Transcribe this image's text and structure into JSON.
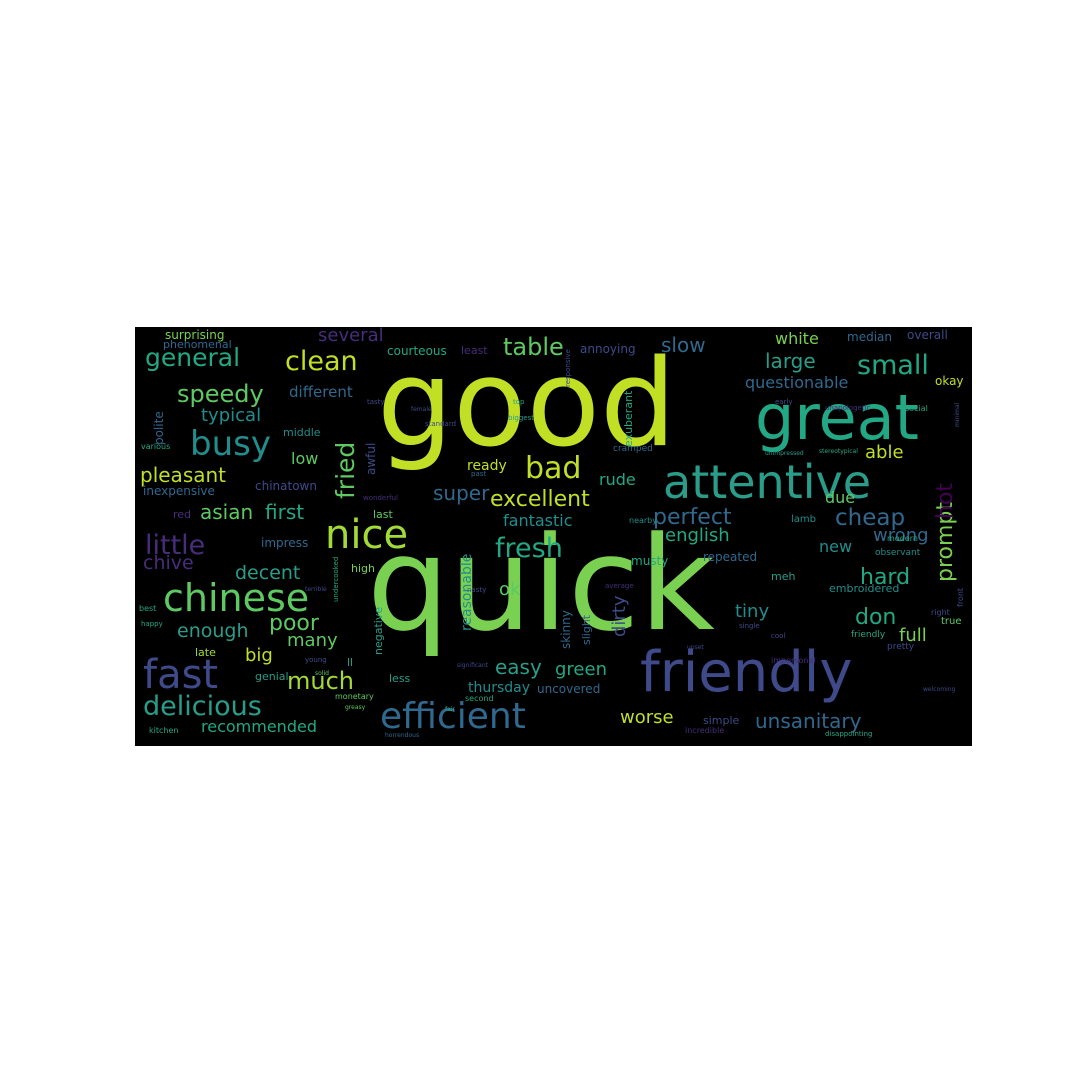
{
  "palette": {
    "background": "#000000",
    "page": "#ffffff",
    "yellow": "#c0df25",
    "lime": "#a2da37",
    "green": "#7ad151",
    "mint": "#5ec962",
    "teal": "#22a884",
    "sea": "#2a9d8a",
    "cyan": "#218e8d",
    "blue": "#31688e",
    "indigo": "#3e4a89",
    "violet": "#472d7b",
    "purple": "#440154"
  },
  "words": {
    "good": "good",
    "quick": "quick",
    "great": "great",
    "friendly": "friendly",
    "attentive": "attentive",
    "nice": "nice",
    "chinese": "chinese",
    "fast": "fast",
    "efficient": "efficient",
    "busy": "busy",
    "bad": "bad",
    "delicious": "delicious",
    "little": "little",
    "fresh": "fresh",
    "small": "small",
    "general": "general",
    "clean": "clean",
    "table": "table",
    "speedy": "speedy",
    "much": "much",
    "fried": "fried",
    "prompt": "prompt",
    "hot": "hot",
    "cheap": "cheap",
    "excellent": "excellent",
    "perfect": "perfect",
    "pleasant": "pleasant",
    "asian": "asian",
    "first": "first",
    "unsanitary": "unsanitary",
    "don": "don",
    "hard": "hard",
    "super": "super",
    "fantastic": "fantastic",
    "poor": "poor",
    "slow": "slow",
    "white": "white",
    "large": "large",
    "several": "several",
    "decent": "decent",
    "enough": "enough",
    "easy": "easy",
    "green": "green",
    "worse": "worse",
    "recommended": "recommended",
    "english": "english",
    "wrong": "wrong",
    "new": "new",
    "tiny": "tiny",
    "full": "full",
    "able": "able",
    "due": "due",
    "dirty": "dirty",
    "ok": "ok",
    "big": "big",
    "many": "many",
    "rude": "rude",
    "ready": "ready",
    "typical": "typical",
    "different": "different",
    "low": "low",
    "chive": "chive",
    "questionable": "questionable",
    "reasonable": "reasonable",
    "thursday": "thursday",
    "uncovered": "uncovered",
    "surprising": "surprising",
    "courteous": "courteous",
    "phenomenal": "phenomenal",
    "annoying": "annoying",
    "median": "median",
    "overall": "overall",
    "okay": "okay",
    "polite": "polite",
    "middle": "middle",
    "awful": "awful",
    "inexpensive": "inexpensive",
    "chinatown": "chinatown",
    "red": "red",
    "last": "last",
    "impress": "impress",
    "high": "high",
    "negative": "negative",
    "skinny": "skinny",
    "slight": "slight",
    "musty": "musty",
    "repeated": "repeated",
    "embroidered": "embroidered",
    "lamb": "lamb",
    "observant": "observant",
    "meh": "meh",
    "genial": "genial",
    "less": "less",
    "late": "late",
    "simple": "simple",
    "ll": "ll",
    "exuberant": "exuberant",
    "cramped": "cramped",
    "least": "least",
    "true": "true",
    "pretty": "pretty",
    "friendly_small": "friendly",
    "various": "various",
    "best": "best",
    "kitchen": "kitchen",
    "monetary": "monetary",
    "incredible": "incredible",
    "disappointing": "disappointing",
    "modern": "modern",
    "social": "social",
    "early": "early",
    "top": "top",
    "biggest": "biggest",
    "nearby": "nearby",
    "standard": "standard",
    "wonderful": "wonderful",
    "average": "average",
    "second": "second",
    "single": "single",
    "front": "front",
    "right": "right",
    "happy": "happy",
    "young": "young",
    "impersonal": "impersonal",
    "significant": "significant",
    "unapologetic": "unapologetic",
    "responsive": "responsive",
    "tasty": "tasty",
    "female": "female",
    "past": "past",
    "stereotypical": "stereotypical",
    "nasty": "nasty",
    "upset": "upset",
    "cool": "cool",
    "undercooked": "undercooked",
    "greasy": "greasy",
    "horrendous": "horrendous",
    "welcoming": "welcoming",
    "unimpressed": "unimpressed",
    "terrible": "terrible",
    "solid": "solid",
    "fair": "fair",
    "minimal": "minimal"
  }
}
